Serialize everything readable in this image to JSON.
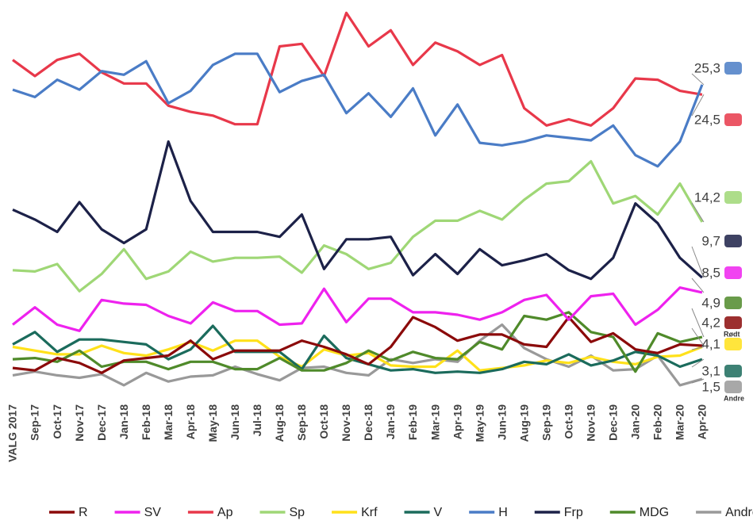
{
  "chart_data": {
    "type": "line",
    "categories": [
      "VALG 2017",
      "Sep-17",
      "Oct-17",
      "Nov-17",
      "Dec-17",
      "Jan-18",
      "Feb-18",
      "Mar-18",
      "Apr-18",
      "May-18",
      "Jun-18",
      "Jul-18",
      "Aug-18",
      "Sep-18",
      "Oct-18",
      "Nov-18",
      "Dec-18",
      "Jan-19",
      "Feb-19",
      "Mar-19",
      "Apr-19",
      "May-19",
      "Jun-19",
      "Aug-19",
      "Sep-19",
      "Oct-19",
      "Nov-19",
      "Dec-19",
      "Jan-20",
      "Feb-20",
      "Mar-20",
      "Apr-20"
    ],
    "ylim": [
      0,
      32
    ],
    "series": [
      {
        "name": "R",
        "color": "#8b0a0a",
        "tag": "Rødt",
        "values": [
          2.4,
          2.2,
          3.2,
          2.8,
          2.0,
          3.0,
          3.2,
          3.4,
          4.6,
          3.1,
          3.8,
          3.8,
          3.8,
          4.6,
          4.1,
          3.5,
          2.7,
          4.1,
          6.5,
          5.7,
          4.6,
          5.1,
          5.1,
          4.3,
          4.1,
          6.5,
          4.5,
          5.2,
          3.9,
          3.6,
          4.3,
          4.2
        ],
        "value_labels": [
          null,
          null,
          null,
          null,
          null,
          null,
          null,
          null,
          null,
          null,
          null,
          null,
          null,
          null,
          null,
          null,
          null,
          null,
          null,
          null,
          null,
          null,
          null,
          null,
          null,
          null,
          null,
          null,
          null,
          null,
          null,
          "4,2"
        ]
      },
      {
        "name": "SV",
        "color": "#ee22ee",
        "values": [
          5.9,
          7.3,
          5.9,
          5.4,
          7.9,
          7.6,
          7.5,
          6.6,
          6.0,
          7.7,
          7.0,
          7.0,
          5.9,
          6.0,
          8.8,
          6.1,
          8.0,
          8.0,
          6.9,
          6.9,
          6.7,
          6.3,
          6.9,
          7.9,
          8.3,
          6.3,
          8.2,
          8.4,
          5.9,
          7.1,
          8.9,
          8.5
        ],
        "value_labels": [
          null,
          null,
          null,
          null,
          null,
          null,
          null,
          null,
          null,
          null,
          null,
          null,
          null,
          null,
          null,
          null,
          null,
          null,
          null,
          null,
          null,
          null,
          null,
          null,
          null,
          null,
          null,
          null,
          null,
          null,
          null,
          "8,5"
        ]
      },
      {
        "name": "Ap",
        "color": "#e8384a",
        "values": [
          27.3,
          26.0,
          27.3,
          27.8,
          26.3,
          25.4,
          25.4,
          23.6,
          23.1,
          22.8,
          22.1,
          22.1,
          28.4,
          28.6,
          26.0,
          31.1,
          28.4,
          29.7,
          26.9,
          28.7,
          28.0,
          26.9,
          27.7,
          23.4,
          22.0,
          22.5,
          22.0,
          23.4,
          25.8,
          25.7,
          24.8,
          24.5
        ],
        "value_labels": [
          null,
          null,
          null,
          null,
          null,
          null,
          null,
          null,
          null,
          null,
          null,
          null,
          null,
          null,
          null,
          null,
          null,
          null,
          null,
          null,
          null,
          null,
          null,
          null,
          null,
          null,
          null,
          null,
          null,
          null,
          null,
          "24,5"
        ]
      },
      {
        "name": "Sp",
        "color": "#9fd776",
        "values": [
          10.3,
          10.2,
          10.8,
          8.6,
          10.0,
          12.0,
          9.6,
          10.2,
          11.8,
          11.0,
          11.3,
          11.3,
          11.4,
          10.1,
          12.3,
          11.6,
          10.4,
          10.9,
          13.0,
          14.3,
          14.3,
          15.1,
          14.4,
          16.0,
          17.3,
          17.5,
          19.1,
          15.7,
          16.3,
          14.8,
          17.3,
          14.2
        ],
        "value_labels": [
          null,
          null,
          null,
          null,
          null,
          null,
          null,
          null,
          null,
          null,
          null,
          null,
          null,
          null,
          null,
          null,
          null,
          null,
          null,
          null,
          null,
          null,
          null,
          null,
          null,
          null,
          null,
          null,
          null,
          null,
          null,
          "14,2"
        ]
      },
      {
        "name": "Krf",
        "color": "#ffe11a",
        "values": [
          4.1,
          3.8,
          3.5,
          3.5,
          4.2,
          3.6,
          3.4,
          3.9,
          4.5,
          3.8,
          4.6,
          4.6,
          3.3,
          2.5,
          3.9,
          3.4,
          3.6,
          2.6,
          2.5,
          2.5,
          3.8,
          2.2,
          2.4,
          2.6,
          3.0,
          2.8,
          3.3,
          2.9,
          2.7,
          3.3,
          3.4,
          4.1
        ],
        "value_labels": [
          null,
          null,
          null,
          null,
          null,
          null,
          null,
          null,
          null,
          null,
          null,
          null,
          null,
          null,
          null,
          null,
          null,
          null,
          null,
          null,
          null,
          null,
          null,
          null,
          null,
          null,
          null,
          null,
          null,
          null,
          null,
          "4,1"
        ]
      },
      {
        "name": "V",
        "color": "#1b6b5c",
        "values": [
          4.3,
          5.3,
          3.7,
          4.7,
          4.7,
          4.5,
          4.3,
          3.1,
          3.9,
          5.8,
          3.7,
          3.7,
          3.7,
          2.3,
          5.0,
          3.2,
          2.7,
          2.2,
          2.3,
          2.0,
          2.1,
          2.0,
          2.3,
          2.9,
          2.7,
          3.5,
          2.6,
          3.0,
          3.7,
          3.4,
          2.5,
          3.1
        ],
        "value_labels": [
          null,
          null,
          null,
          null,
          null,
          null,
          null,
          null,
          null,
          null,
          null,
          null,
          null,
          null,
          null,
          null,
          null,
          null,
          null,
          null,
          null,
          null,
          null,
          null,
          null,
          null,
          null,
          null,
          null,
          null,
          null,
          "3,1"
        ]
      },
      {
        "name": "H",
        "color": "#4a7cc6",
        "values": [
          24.9,
          24.3,
          25.7,
          24.9,
          26.4,
          26.1,
          27.2,
          23.8,
          24.8,
          26.9,
          27.8,
          27.8,
          24.7,
          25.6,
          26.1,
          23.0,
          24.6,
          22.7,
          25.0,
          21.2,
          23.7,
          20.6,
          20.4,
          20.7,
          21.2,
          21.0,
          20.8,
          22.0,
          19.6,
          18.7,
          20.7,
          25.3
        ],
        "value_labels": [
          null,
          null,
          null,
          null,
          null,
          null,
          null,
          null,
          null,
          null,
          null,
          null,
          null,
          null,
          null,
          null,
          null,
          null,
          null,
          null,
          null,
          null,
          null,
          null,
          null,
          null,
          null,
          null,
          null,
          null,
          null,
          "25,3"
        ]
      },
      {
        "name": "Frp",
        "color": "#1c2148",
        "values": [
          15.2,
          14.4,
          13.4,
          15.8,
          13.6,
          12.5,
          13.6,
          20.7,
          15.9,
          13.4,
          13.4,
          13.4,
          13.0,
          14.8,
          10.4,
          12.8,
          12.8,
          13.0,
          9.9,
          11.6,
          10.0,
          12.0,
          10.7,
          11.1,
          11.6,
          10.3,
          9.6,
          11.3,
          15.7,
          14.1,
          11.3,
          9.7
        ],
        "value_labels": [
          null,
          null,
          null,
          null,
          null,
          null,
          null,
          null,
          null,
          null,
          null,
          null,
          null,
          null,
          null,
          null,
          null,
          null,
          null,
          null,
          null,
          null,
          null,
          null,
          null,
          null,
          null,
          null,
          null,
          null,
          null,
          "9,7"
        ]
      },
      {
        "name": "MDG",
        "color": "#4f8a2a",
        "values": [
          3.1,
          3.2,
          2.9,
          3.8,
          2.5,
          2.9,
          2.9,
          2.3,
          2.9,
          2.9,
          2.3,
          2.3,
          3.2,
          2.2,
          2.2,
          2.8,
          3.8,
          3.0,
          3.7,
          3.2,
          3.1,
          4.5,
          3.9,
          6.6,
          6.3,
          6.9,
          5.3,
          4.9,
          2.1,
          5.2,
          4.5,
          4.9
        ],
        "value_labels": [
          null,
          null,
          null,
          null,
          null,
          null,
          null,
          null,
          null,
          null,
          null,
          null,
          null,
          null,
          null,
          null,
          null,
          null,
          null,
          null,
          null,
          null,
          null,
          null,
          null,
          null,
          null,
          null,
          null,
          null,
          null,
          "4,9"
        ]
      },
      {
        "name": "Andre",
        "color": "#999999",
        "tag": "Andre",
        "values": [
          1.8,
          2.1,
          1.8,
          1.6,
          1.9,
          1.0,
          2.0,
          1.3,
          1.7,
          1.8,
          2.5,
          1.9,
          1.4,
          2.4,
          2.5,
          2.0,
          1.8,
          3.1,
          2.8,
          3.1,
          2.9,
          4.6,
          5.9,
          4.0,
          3.1,
          2.5,
          3.4,
          2.2,
          2.3,
          3.4,
          1.0,
          1.5
        ],
        "value_labels": [
          null,
          null,
          null,
          null,
          null,
          null,
          null,
          null,
          null,
          null,
          null,
          null,
          null,
          null,
          null,
          null,
          null,
          null,
          null,
          null,
          null,
          null,
          null,
          null,
          null,
          null,
          null,
          null,
          null,
          null,
          null,
          "1,5"
        ]
      }
    ]
  }
}
